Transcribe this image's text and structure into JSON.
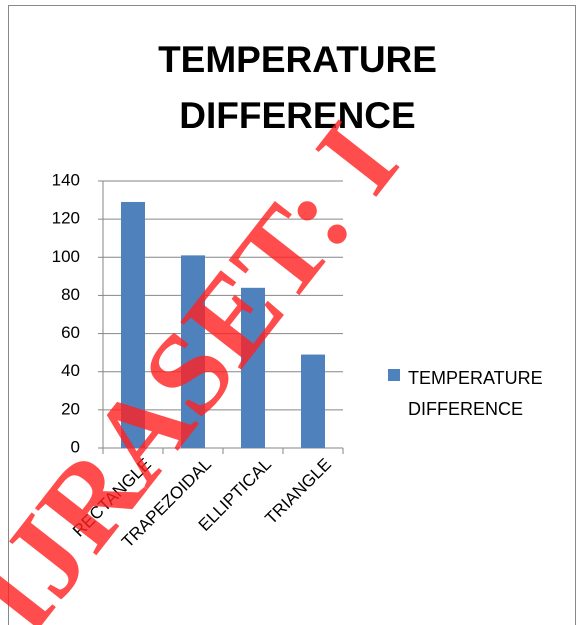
{
  "chart_data": {
    "type": "bar",
    "title": "TEMPERATURE DIFFERENCE",
    "categories": [
      "RECTANGLE",
      "TRAPEZOIDAL",
      "ELLIPTICAL",
      "TRIANGLE"
    ],
    "series": [
      {
        "name": "TEMPERATURE DIFFERENCE",
        "color": "#4f81bd",
        "values": [
          129,
          101,
          84,
          49
        ]
      }
    ],
    "ylim": [
      0,
      140
    ],
    "yticks": [
      0,
      20,
      40,
      60,
      80,
      100,
      120,
      140
    ],
    "grid": true,
    "legend": "right",
    "watermark": "IJRASET: I"
  }
}
